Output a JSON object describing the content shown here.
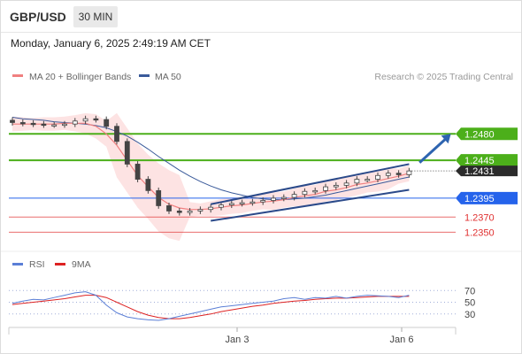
{
  "header": {
    "pair": "GBP/USD",
    "timeframe": "30 MIN"
  },
  "datetime": "Monday, January 6, 2025 2:49:19 AM CET",
  "colors": {
    "ma20": "#f08080",
    "bollinger_fill": "#fde0e0",
    "ma50": "#3a5a9a",
    "resistance": "#4caf1a",
    "support": "#2563eb",
    "target": "#e03030",
    "candle": "#444444",
    "rsi": "#5b7fd6",
    "rsi_ma": "#dd2222",
    "arrow": "#2e64b0",
    "price_tag": "#2b2b2b"
  },
  "chart_data": [
    {
      "type": "candlestick",
      "title": "",
      "legend": [
        {
          "name": "MA 20 + Bollinger Bands",
          "color": "#f08080"
        },
        {
          "name": "MA 50",
          "color": "#3a5a9a"
        }
      ],
      "legend_position": "top-left",
      "credit": "Research © 2025 Trading Central",
      "xlabel": "",
      "ylabel": "",
      "x_ticks": [
        "Jan 3",
        "Jan 6"
      ],
      "ylim": [
        1.232,
        1.254
      ],
      "levels": [
        {
          "price": 1.248,
          "label": "1.2480",
          "kind": "resistance"
        },
        {
          "price": 1.2445,
          "label": "1.2445",
          "kind": "resistance"
        },
        {
          "price": 1.2395,
          "label": "1.2395",
          "kind": "support"
        },
        {
          "price": 1.237,
          "label": "1.2370",
          "kind": "target"
        },
        {
          "price": 1.235,
          "label": "1.2350",
          "kind": "target"
        }
      ],
      "last_price": {
        "price": 1.2431,
        "label": "1.2431"
      },
      "channel": [
        {
          "from": [
            19,
            1.2387
          ],
          "to": [
            38,
            1.244
          ]
        },
        {
          "from": [
            19,
            1.2365
          ],
          "to": [
            38,
            1.2406
          ]
        }
      ],
      "forecast_arrow": {
        "from": [
          39,
          1.2442
        ],
        "to": [
          42,
          1.248
        ]
      },
      "close": [
        1.2495,
        1.2494,
        1.2493,
        1.2492,
        1.2492,
        1.2493,
        1.2497,
        1.25,
        1.2499,
        1.249,
        1.247,
        1.244,
        1.242,
        1.2405,
        1.2385,
        1.2378,
        1.2376,
        1.2378,
        1.238,
        1.2383,
        1.2386,
        1.2388,
        1.2389,
        1.239,
        1.2392,
        1.2395,
        1.2396,
        1.24,
        1.2404,
        1.2405,
        1.241,
        1.2412,
        1.2415,
        1.242,
        1.242,
        1.2425,
        1.2428,
        1.2426,
        1.2431
      ],
      "ma20": [
        1.2493,
        1.2493,
        1.2493,
        1.2493,
        1.2493,
        1.2494,
        1.2494,
        1.2494,
        1.249,
        1.248,
        1.2465,
        1.2445,
        1.2425,
        1.241,
        1.2396,
        1.2387,
        1.2382,
        1.238,
        1.238,
        1.2381,
        1.2383,
        1.2385,
        1.2386,
        1.2388,
        1.239,
        1.2391,
        1.2393,
        1.2396,
        1.2398,
        1.24,
        1.2404,
        1.2406,
        1.2409,
        1.2413,
        1.2415,
        1.2418,
        1.2421,
        1.2424,
        1.2428
      ],
      "ma50": [
        1.2502,
        1.25,
        1.2499,
        1.2498,
        1.2496,
        1.2495,
        1.2494,
        1.2493,
        1.2491,
        1.2488,
        1.2483,
        1.2477,
        1.2469,
        1.246,
        1.245,
        1.2441,
        1.2432,
        1.2424,
        1.2417,
        1.2411,
        1.2406,
        1.2402,
        1.2399,
        1.2396,
        1.2394,
        1.2393,
        1.2393,
        1.2394,
        1.2395,
        1.2397,
        1.2399,
        1.2402,
        1.2405,
        1.2408,
        1.2411,
        1.2414,
        1.2417,
        1.242,
        1.2423
      ]
    },
    {
      "type": "line",
      "title": "",
      "legend": [
        {
          "name": "RSI",
          "color": "#5b7fd6"
        },
        {
          "name": "9MA",
          "color": "#dd2222"
        }
      ],
      "legend_position": "top-left",
      "x_ticks": [
        "Jan 3",
        "Jan 6"
      ],
      "y_ticks": [
        70,
        50,
        30
      ],
      "ylim": [
        10,
        90
      ],
      "rsi": [
        48,
        52,
        55,
        54,
        58,
        62,
        66,
        68,
        62,
        45,
        32,
        25,
        22,
        20,
        19,
        22,
        26,
        30,
        34,
        38,
        42,
        44,
        46,
        48,
        50,
        52,
        56,
        58,
        55,
        58,
        57,
        60,
        57,
        60,
        62,
        61,
        60,
        58,
        62
      ],
      "rsi_ma": [
        46,
        48,
        50,
        52,
        54,
        56,
        59,
        62,
        62,
        58,
        50,
        42,
        34,
        28,
        24,
        22,
        22,
        24,
        27,
        30,
        34,
        37,
        40,
        43,
        45,
        48,
        50,
        52,
        53,
        55,
        56,
        57,
        57,
        58,
        59,
        60,
        60,
        60,
        60
      ]
    }
  ]
}
